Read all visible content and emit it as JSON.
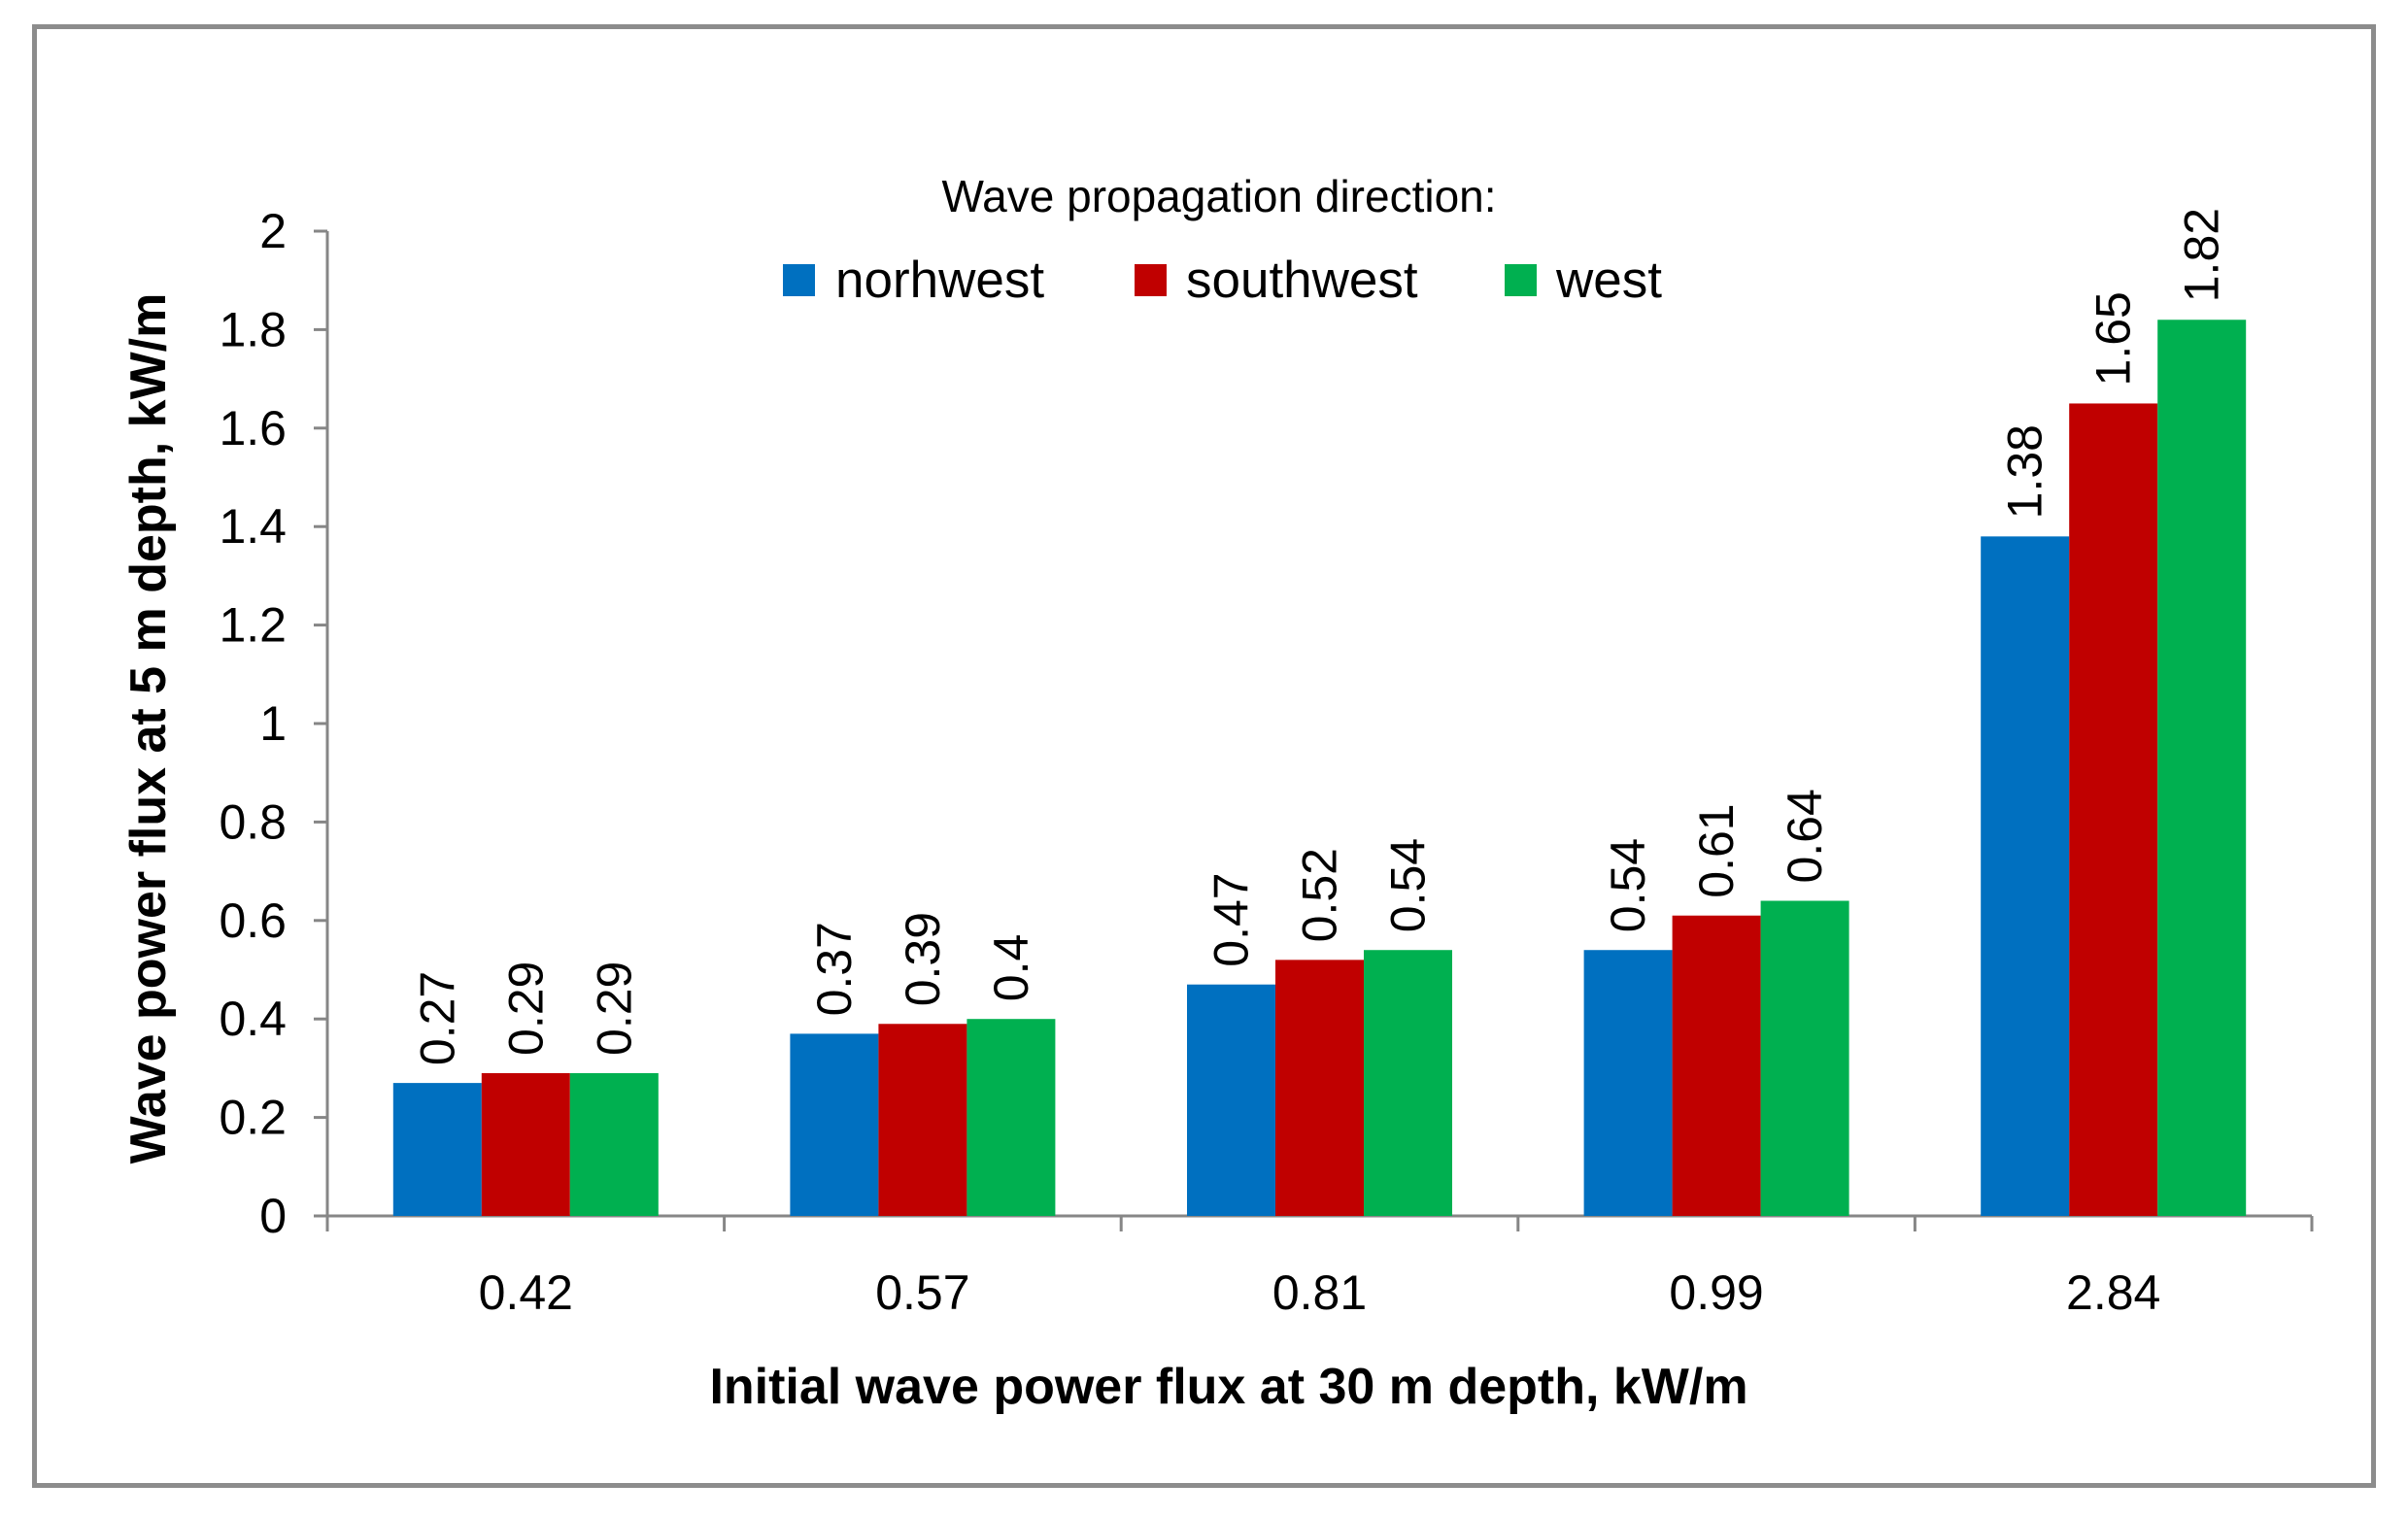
{
  "chart_data": {
    "type": "bar",
    "title": "",
    "xlabel": "Initial wave power flux at 30 m depth, kW/m",
    "ylabel": "Wave power flux at 5 m depth, kW/m",
    "categories": [
      "0.42",
      "0.57",
      "0.81",
      "0.99",
      "2.84"
    ],
    "ylim": [
      0,
      2
    ],
    "yticks": [
      "0",
      "0.2",
      "0.4",
      "0.6",
      "0.8",
      "1",
      "1.2",
      "1.4",
      "1.6",
      "1.8",
      "2"
    ],
    "grid": false,
    "legend": {
      "title": "Wave propagation direction:",
      "position": "top-center"
    },
    "series": [
      {
        "name": "norhwest",
        "color": "#0070c0",
        "values": [
          0.27,
          0.37,
          0.47,
          0.54,
          1.38
        ]
      },
      {
        "name": "southwest",
        "color": "#c00000",
        "values": [
          0.29,
          0.39,
          0.52,
          0.61,
          1.65
        ]
      },
      {
        "name": "west",
        "color": "#00b050",
        "values": [
          0.29,
          0.4,
          0.54,
          0.64,
          1.82
        ]
      }
    ],
    "data_labels": [
      [
        "0.27",
        "0.37",
        "0.47",
        "0.54",
        "1.38"
      ],
      [
        "0.29",
        "0.39",
        "0.52",
        "0.61",
        "1.65"
      ],
      [
        "0.29",
        "0.4",
        "0.54",
        "0.64",
        "1.82"
      ]
    ]
  }
}
